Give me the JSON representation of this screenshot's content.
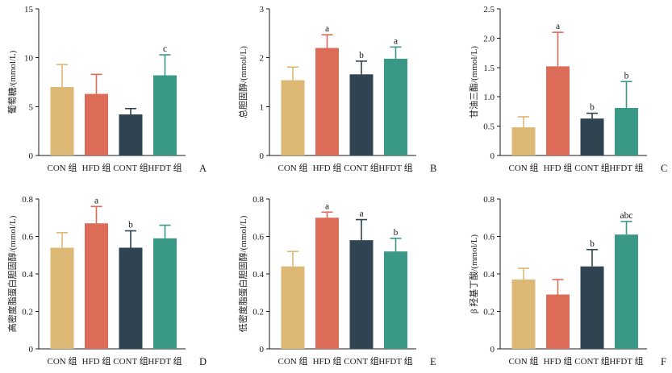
{
  "bar_colors": [
    "#DDB875",
    "#DC6C58",
    "#2F4450",
    "#3A9986"
  ],
  "chart_data": [
    {
      "type": "bar",
      "panel_label": "A",
      "ylabel": "葡萄糖/(mmol/L)",
      "categories": [
        "CON 组",
        "HFD 组",
        "CONT 组",
        "HFDT 组"
      ],
      "values": [
        7.0,
        6.3,
        4.2,
        8.2
      ],
      "errors": [
        2.3,
        2.0,
        0.6,
        2.1
      ],
      "significance": [
        null,
        null,
        null,
        "c"
      ],
      "ylim": [
        0,
        15
      ],
      "yticks": [
        0,
        5,
        10,
        15
      ],
      "ytick_labels": [
        "0",
        "5",
        "10",
        "15"
      ],
      "grid": false
    },
    {
      "type": "bar",
      "panel_label": "B",
      "ylabel": "总胆固醇/(mmol/L)",
      "categories": [
        "CON 组",
        "HFD 组",
        "CONT 组",
        "HFDT 组"
      ],
      "values": [
        1.54,
        2.2,
        1.66,
        1.98
      ],
      "errors": [
        0.27,
        0.27,
        0.27,
        0.24
      ],
      "significance": [
        null,
        "a",
        "b",
        "a"
      ],
      "ylim": [
        0,
        3
      ],
      "yticks": [
        0,
        1,
        2,
        3
      ],
      "ytick_labels": [
        "0",
        "1",
        "2",
        "3"
      ],
      "grid": false
    },
    {
      "type": "bar",
      "panel_label": "C",
      "ylabel": "甘油三酯/(mmol/L)",
      "categories": [
        "CON 组",
        "HFD 组",
        "CONT 组",
        "HFDT 组"
      ],
      "values": [
        0.48,
        1.52,
        0.63,
        0.81
      ],
      "errors": [
        0.18,
        0.58,
        0.09,
        0.45
      ],
      "significance": [
        null,
        "a",
        "b",
        "b"
      ],
      "ylim": [
        0,
        2.5
      ],
      "yticks": [
        0,
        0.5,
        1.0,
        1.5,
        2.0,
        2.5
      ],
      "ytick_labels": [
        "0",
        "0.5",
        "1.0",
        "1.5",
        "2.0",
        "2.5"
      ],
      "grid": false
    },
    {
      "type": "bar",
      "panel_label": "D",
      "ylabel": "高密度脂蛋白胆固醇/(mmol/L)",
      "categories": [
        "CON 组",
        "HFD 组",
        "CONT 组",
        "HFDT 组"
      ],
      "values": [
        0.54,
        0.67,
        0.54,
        0.59
      ],
      "errors": [
        0.08,
        0.09,
        0.09,
        0.07
      ],
      "significance": [
        null,
        "a",
        "b",
        null
      ],
      "ylim": [
        0,
        0.8
      ],
      "yticks": [
        0,
        0.2,
        0.4,
        0.6,
        0.8
      ],
      "ytick_labels": [
        "0",
        "0.2",
        "0.4",
        "0.6",
        "0.8"
      ],
      "grid": false
    },
    {
      "type": "bar",
      "panel_label": "E",
      "ylabel": "低密度脂蛋白胆固醇/(mmol/L)",
      "categories": [
        "CON 组",
        "HFD 组",
        "CONT 组",
        "HFDT 组"
      ],
      "values": [
        0.44,
        0.7,
        0.58,
        0.52
      ],
      "errors": [
        0.08,
        0.03,
        0.11,
        0.07
      ],
      "significance": [
        null,
        "a",
        "a",
        "b"
      ],
      "ylim": [
        0,
        0.8
      ],
      "yticks": [
        0,
        0.2,
        0.4,
        0.6,
        0.8
      ],
      "ytick_labels": [
        "0",
        "0.2",
        "0.4",
        "0.6",
        "0.8"
      ],
      "grid": false
    },
    {
      "type": "bar",
      "panel_label": "F",
      "ylabel": "β 羟基丁酸/(mmol/L)",
      "categories": [
        "CON 组",
        "HFD 组",
        "CONT 组",
        "HFDT 组"
      ],
      "values": [
        0.37,
        0.29,
        0.44,
        0.61
      ],
      "errors": [
        0.06,
        0.08,
        0.09,
        0.07
      ],
      "significance": [
        null,
        null,
        "b",
        "abc"
      ],
      "ylim": [
        0,
        0.8
      ],
      "yticks": [
        0,
        0.2,
        0.4,
        0.6,
        0.8
      ],
      "ytick_labels": [
        "0",
        "0.2",
        "0.4",
        "0.6",
        "0.8"
      ],
      "grid": false
    }
  ]
}
